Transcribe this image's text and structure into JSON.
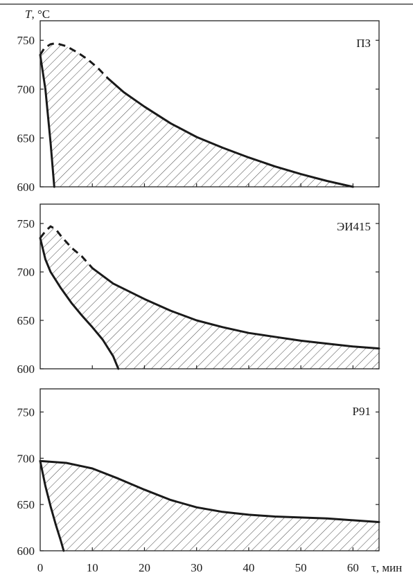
{
  "chart_data": [
    {
      "type": "area",
      "title": "ПЗ",
      "ylabel": "T, °C",
      "xlim": [
        0,
        65
      ],
      "ylim": [
        600,
        770
      ],
      "yticks": [
        600,
        650,
        700,
        750
      ],
      "series": [
        {
          "role": "left-boundary",
          "style": "solid",
          "x": [
            0,
            1.0,
            2.0,
            2.7
          ],
          "y": [
            735,
            700,
            645,
            600
          ]
        },
        {
          "role": "top-boundary-dashed",
          "style": "dashed",
          "x": [
            0,
            0.8,
            2.0,
            3.0,
            5.0,
            7.0,
            9.0,
            11.0,
            13.0
          ],
          "y": [
            735,
            742,
            746,
            747,
            744,
            738,
            731,
            722,
            711
          ]
        },
        {
          "role": "top-boundary",
          "style": "solid",
          "x": [
            13.0,
            16,
            20,
            25,
            30,
            35,
            40,
            45,
            50,
            55,
            60
          ],
          "y": [
            711,
            697,
            682,
            665,
            651,
            640,
            630,
            621,
            613,
            606,
            600
          ]
        }
      ]
    },
    {
      "type": "area",
      "title": "ЭИ415",
      "xlim": [
        0,
        65
      ],
      "ylim": [
        600,
        770
      ],
      "yticks": [
        600,
        650,
        700,
        750
      ],
      "series": [
        {
          "role": "left-boundary",
          "style": "solid",
          "x": [
            0,
            1.0,
            2.0,
            4.0,
            6.0,
            8.0,
            10.0,
            12.0,
            14.0,
            15.0
          ],
          "y": [
            735,
            713,
            700,
            683,
            668,
            655,
            643,
            630,
            613,
            600
          ]
        },
        {
          "role": "top-boundary-dashed",
          "style": "dashed",
          "x": [
            0,
            1.0,
            2.0,
            3.0,
            4.0,
            6.0,
            8.0,
            10.0
          ],
          "y": [
            735,
            742,
            747,
            744,
            737,
            725,
            716,
            704
          ]
        },
        {
          "role": "top-boundary",
          "style": "solid",
          "x": [
            10.0,
            14,
            20,
            25,
            30,
            35,
            40,
            45,
            50,
            55,
            60,
            65
          ],
          "y": [
            704,
            688,
            672,
            660,
            650,
            643,
            637,
            633,
            629,
            626,
            623,
            621
          ]
        }
      ]
    },
    {
      "type": "area",
      "title": "P91",
      "xlabel": "τ, мин",
      "xlim": [
        0,
        65
      ],
      "ylim": [
        600,
        775
      ],
      "yticks": [
        600,
        650,
        700,
        750
      ],
      "xticks": [
        0,
        10,
        20,
        30,
        40,
        50,
        60
      ],
      "series": [
        {
          "role": "left-boundary",
          "style": "solid",
          "x": [
            0,
            1.0,
            2.0,
            3.0,
            4.0,
            4.5
          ],
          "y": [
            697,
            670,
            648,
            628,
            610,
            600
          ]
        },
        {
          "role": "top-boundary",
          "style": "solid",
          "x": [
            0,
            5,
            10,
            15,
            20,
            25,
            30,
            35,
            40,
            45,
            50,
            55,
            60,
            65
          ],
          "y": [
            697,
            695,
            689,
            678,
            666,
            655,
            647,
            642,
            639,
            637,
            636,
            635,
            633,
            631
          ]
        }
      ]
    }
  ],
  "texts": {
    "ylabel_symbol": "T",
    "ylabel_unit": ", °C",
    "xlabel": "τ, мин"
  }
}
